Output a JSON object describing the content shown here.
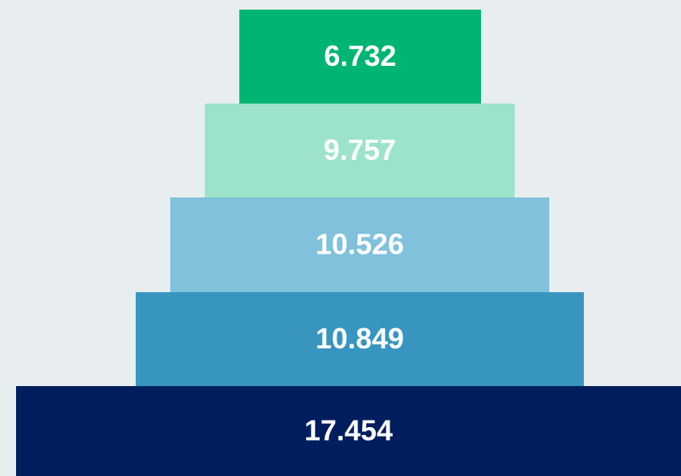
{
  "chart_data": {
    "type": "pyramid",
    "values": [
      6732,
      9757,
      10526,
      10849,
      17454
    ],
    "value_labels": [
      "6.732",
      "9.757",
      "10.526",
      "10.849",
      "17.454"
    ],
    "colors": [
      "#00b574",
      "#9ce3c9",
      "#80c1dc",
      "#3895bf",
      "#001e5e"
    ]
  }
}
